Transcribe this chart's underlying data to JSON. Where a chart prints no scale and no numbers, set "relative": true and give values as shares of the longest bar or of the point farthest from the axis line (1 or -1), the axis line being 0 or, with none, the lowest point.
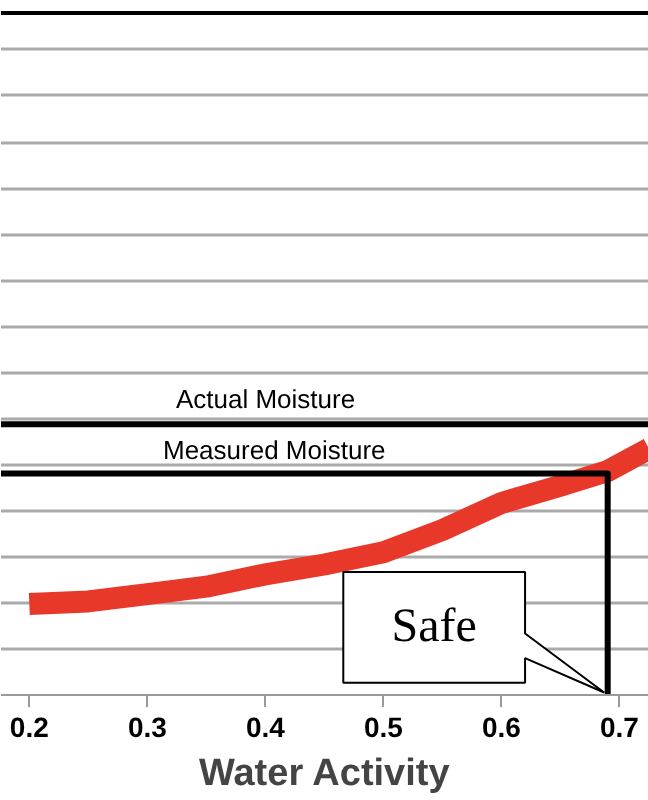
{
  "chart_data": {
    "type": "line",
    "xlabel": "Water Activity",
    "relative": true,
    "xlim": [
      0.176,
      0.725
    ],
    "xticks": [
      0.2,
      0.3,
      0.4,
      0.5,
      0.6,
      0.7
    ],
    "grid": "y",
    "marker": "none",
    "line_style": "solid",
    "tick_labels": "x",
    "series": [
      {
        "color": "#e8382a",
        "x": [
          0.2,
          0.25,
          0.3,
          0.35,
          0.4,
          0.45,
          0.5,
          0.55,
          0.6,
          0.65,
          0.69,
          0.725
        ],
        "values": [
          0.37,
          0.38,
          0.41,
          0.44,
          0.49,
          0.53,
          0.58,
          0.67,
          0.78,
          0.85,
          0.91,
          1.0
        ]
      },
      {
        "name": "Measured Moisture",
        "color": "#000000",
        "x": [
          0.176,
          0.69,
          0.69
        ],
        "values": [
          0.9,
          0.9,
          0
        ]
      }
    ],
    "ref_lines": [
      {
        "axis": "y",
        "value": 1.1,
        "label": "Actual Moisture",
        "color": "#000000"
      }
    ],
    "annotations": [
      {
        "text": "Safe",
        "x": 0.69,
        "y": 0
      }
    ]
  }
}
